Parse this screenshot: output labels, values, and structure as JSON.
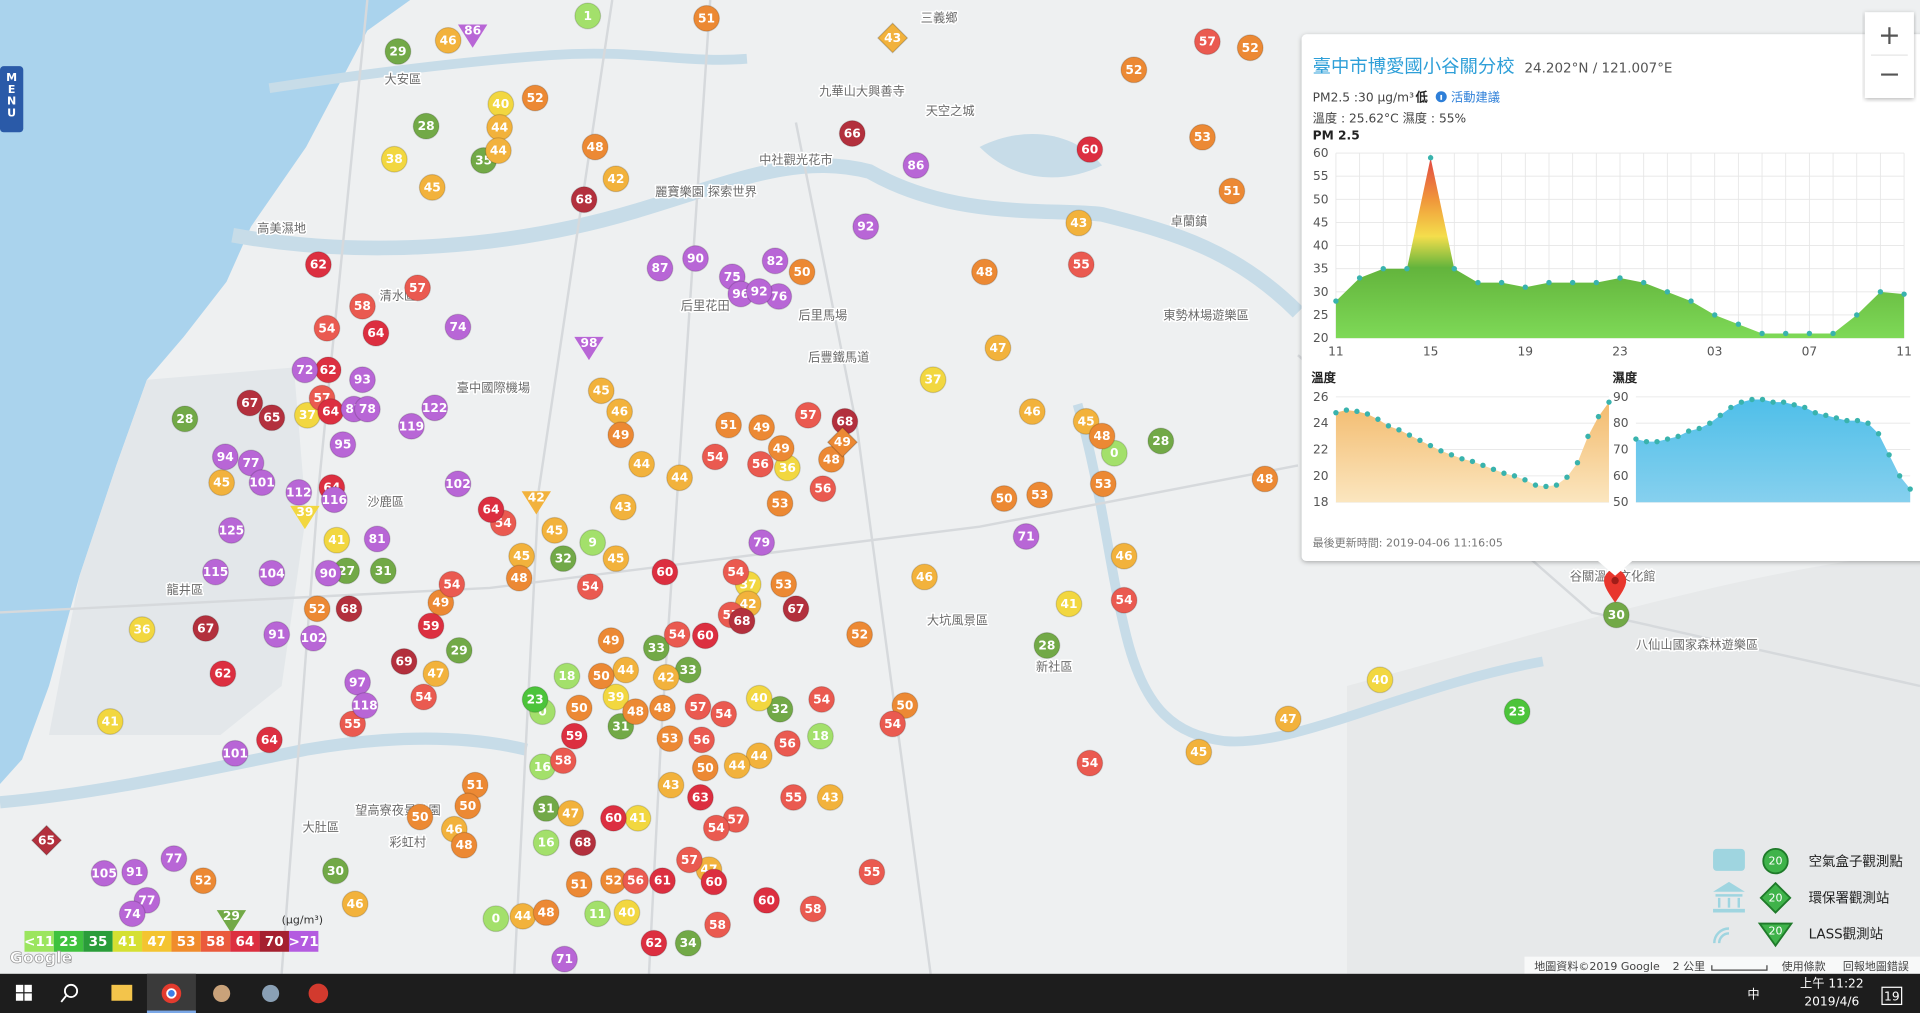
{
  "menu_button": "MENU",
  "zoom": {
    "in": "+",
    "out": "−"
  },
  "map_labels": [
    "三義鄉",
    "大安區",
    "九華山大興善寺",
    "天空之城",
    "中社觀光花市",
    "麗寶樂園 探索世界",
    "高美濕地",
    "卓蘭鎮",
    "清水區",
    "后里花田",
    "后里馬場",
    "東勢林場遊樂區",
    "臺中國際機場",
    "后豐鐵馬道",
    "沙鹿區",
    "龍井區",
    "大坑風景區",
    "新社區",
    "谷關溫泉文化館",
    "八仙山國家森林遊樂區",
    "望高寮夜景公園",
    "大肚區",
    "彩虹村"
  ],
  "markers": [
    {
      "shape": "circle",
      "color": "#a3e06b",
      "values": [
        1,
        9,
        0,
        18,
        18,
        0,
        16,
        16,
        0,
        11
      ]
    },
    {
      "shape": "circle",
      "color": "#4cc43a",
      "values": [
        23,
        23
      ]
    },
    {
      "shape": "circle",
      "color": "#72a947",
      "values": [
        29,
        28,
        35,
        28,
        27,
        31,
        29,
        30,
        32,
        33,
        33,
        32,
        31,
        31,
        34,
        28,
        28,
        30
      ]
    },
    {
      "shape": "circle",
      "color": "#f2d740",
      "values": [
        40,
        38,
        37,
        37,
        41,
        36,
        41,
        36,
        37,
        39,
        40,
        41,
        40,
        41,
        40
      ]
    },
    {
      "shape": "circle",
      "color": "#f2b23c",
      "values": [
        46,
        44,
        44,
        45,
        42,
        43,
        47,
        45,
        47,
        46,
        46,
        45,
        46,
        44,
        44,
        43,
        45,
        45,
        45,
        42,
        44,
        42,
        44,
        44,
        43,
        43,
        47,
        44,
        47,
        46,
        45,
        46,
        46,
        45,
        47
      ]
    },
    {
      "shape": "circle",
      "color": "#ec8934",
      "values": [
        51,
        52,
        48,
        52,
        53,
        51,
        48,
        50,
        52,
        49,
        52,
        50,
        48,
        51,
        50,
        49,
        48,
        51,
        49,
        49,
        48,
        53,
        53,
        49,
        48,
        50,
        53,
        48,
        50,
        50,
        52,
        51,
        48,
        50,
        53,
        48,
        53,
        52,
        50,
        48,
        52
      ]
    },
    {
      "shape": "circle",
      "color": "#ea5a50",
      "values": [
        57,
        55,
        57,
        58,
        54,
        57,
        54,
        54,
        55,
        54,
        54,
        54,
        56,
        57,
        56,
        54,
        57,
        54,
        57,
        54,
        54,
        56,
        56,
        58,
        57,
        54,
        55,
        57,
        56,
        58,
        58,
        54,
        54,
        55,
        54
      ]
    },
    {
      "shape": "circle",
      "color": "#dc2f40",
      "values": [
        60,
        62,
        64,
        62,
        64,
        64,
        59,
        62,
        64,
        64,
        60,
        60,
        59,
        60,
        63,
        61,
        62,
        60,
        60
      ]
    },
    {
      "shape": "circle",
      "color": "#b3303d",
      "values": [
        68,
        66,
        67,
        65,
        67,
        68,
        69,
        68,
        67,
        68,
        68
      ]
    },
    {
      "shape": "circle",
      "color": "#b866d6",
      "values": [
        86,
        92,
        87,
        90,
        82,
        75,
        96,
        76,
        92,
        74,
        72,
        93,
        87,
        78,
        122,
        119,
        95,
        94,
        77,
        101,
        112,
        116,
        102,
        125,
        81,
        115,
        104,
        90,
        91,
        102,
        97,
        118,
        101,
        105,
        91,
        77,
        77,
        74,
        79,
        71,
        71
      ]
    },
    {
      "shape": "triangle",
      "color": "#b866d6",
      "values": [
        86,
        98
      ]
    },
    {
      "shape": "triangle",
      "color": "#f2d740",
      "values": [
        39
      ]
    },
    {
      "shape": "triangle",
      "color": "#f2b23c",
      "values": [
        42
      ]
    },
    {
      "shape": "triangle",
      "color": "#72a947",
      "values": [
        29
      ]
    },
    {
      "shape": "diamond",
      "color": "#f2b23c",
      "values": [
        43
      ]
    },
    {
      "shape": "diamond",
      "color": "#ec8934",
      "values": [
        49
      ]
    },
    {
      "shape": "diamond",
      "color": "#b3303d",
      "values": [
        65
      ]
    }
  ],
  "popup": {
    "title": "臺中市博愛國小谷關分校",
    "coords": "24.202°N / 121.007°E",
    "pm_text": "PM2.5 :30 μg/m³",
    "level": "低",
    "advice": "活動建議",
    "weather": "溫度 : 25.62°C 濕度 : 55%",
    "updated": "最後更新時間: 2019-04-06 11:16:05",
    "charts": [
      {
        "type": "area",
        "title": "PM 2.5",
        "categories": [
          "11",
          null,
          null,
          null,
          "15",
          null,
          null,
          null,
          "19",
          null,
          null,
          null,
          "23",
          null,
          null,
          null,
          "03",
          null,
          null,
          null,
          "07",
          null,
          null,
          null,
          "11"
        ],
        "values": [
          28,
          33,
          35,
          35,
          59,
          35,
          32,
          32,
          31,
          32,
          32,
          32,
          33,
          32,
          30,
          28,
          25,
          23,
          21,
          21,
          21,
          21,
          25,
          30,
          29.5
        ],
        "ylim": [
          20,
          60
        ],
        "yticks": [
          20,
          25,
          30,
          35,
          40,
          45,
          50,
          55,
          60
        ],
        "grid": true
      },
      {
        "type": "area",
        "title": "溫度",
        "values": [
          24.8,
          25,
          24.9,
          24.7,
          24.3,
          23.8,
          23.5,
          23.1,
          22.7,
          22.3,
          21.9,
          21.6,
          21.3,
          21.1,
          20.8,
          20.5,
          20.2,
          20,
          19.7,
          19.3,
          19.2,
          19.3,
          19.9,
          21,
          23,
          24.5,
          25.6
        ],
        "ylim": [
          18,
          26
        ],
        "yticks": [
          18,
          20,
          22,
          24,
          26
        ],
        "color": "#f4c27c",
        "grid": true
      },
      {
        "type": "area",
        "title": "濕度",
        "values": [
          74,
          73,
          73,
          74,
          75,
          77,
          78,
          80,
          83,
          86,
          88,
          89,
          89,
          88,
          88,
          87,
          86,
          84,
          83,
          82,
          81,
          81,
          80,
          76,
          68,
          60,
          55
        ],
        "ylim": [
          50,
          90
        ],
        "yticks": [
          50,
          60,
          70,
          80,
          90
        ],
        "color": "#5ec4ea",
        "grid": true
      }
    ]
  },
  "scale_legend": {
    "unit": "(μg/m³)",
    "items": [
      {
        "label": "<11",
        "color": "#9be55e"
      },
      {
        "label": "23",
        "color": "#3fc23e"
      },
      {
        "label": "35",
        "color": "#2a9d3a"
      },
      {
        "label": "41",
        "color": "#d5e032"
      },
      {
        "label": "47",
        "color": "#f4c430"
      },
      {
        "label": "53",
        "color": "#f08c2c"
      },
      {
        "label": "58",
        "color": "#ea5a3c"
      },
      {
        "label": "64",
        "color": "#dc2f40"
      },
      {
        "label": "70",
        "color": "#a52030"
      },
      {
        "label": ">71",
        "color": "#b45be0"
      }
    ]
  },
  "station_legend": [
    {
      "label": "空氣盒子觀測點",
      "icon": "20"
    },
    {
      "label": "環保署觀測站",
      "icon": "20"
    },
    {
      "label": "LASS觀測站",
      "icon": "20"
    }
  ],
  "attribution": {
    "google": "Google",
    "data": "地圖資料©2019 Google",
    "scale": "2 公里",
    "terms": "使用條款",
    "report": "回報地圖錯誤"
  },
  "taskbar": {
    "time": "上午 11:22",
    "date": "2019/4/6",
    "ime": "中",
    "notifications": "19"
  }
}
